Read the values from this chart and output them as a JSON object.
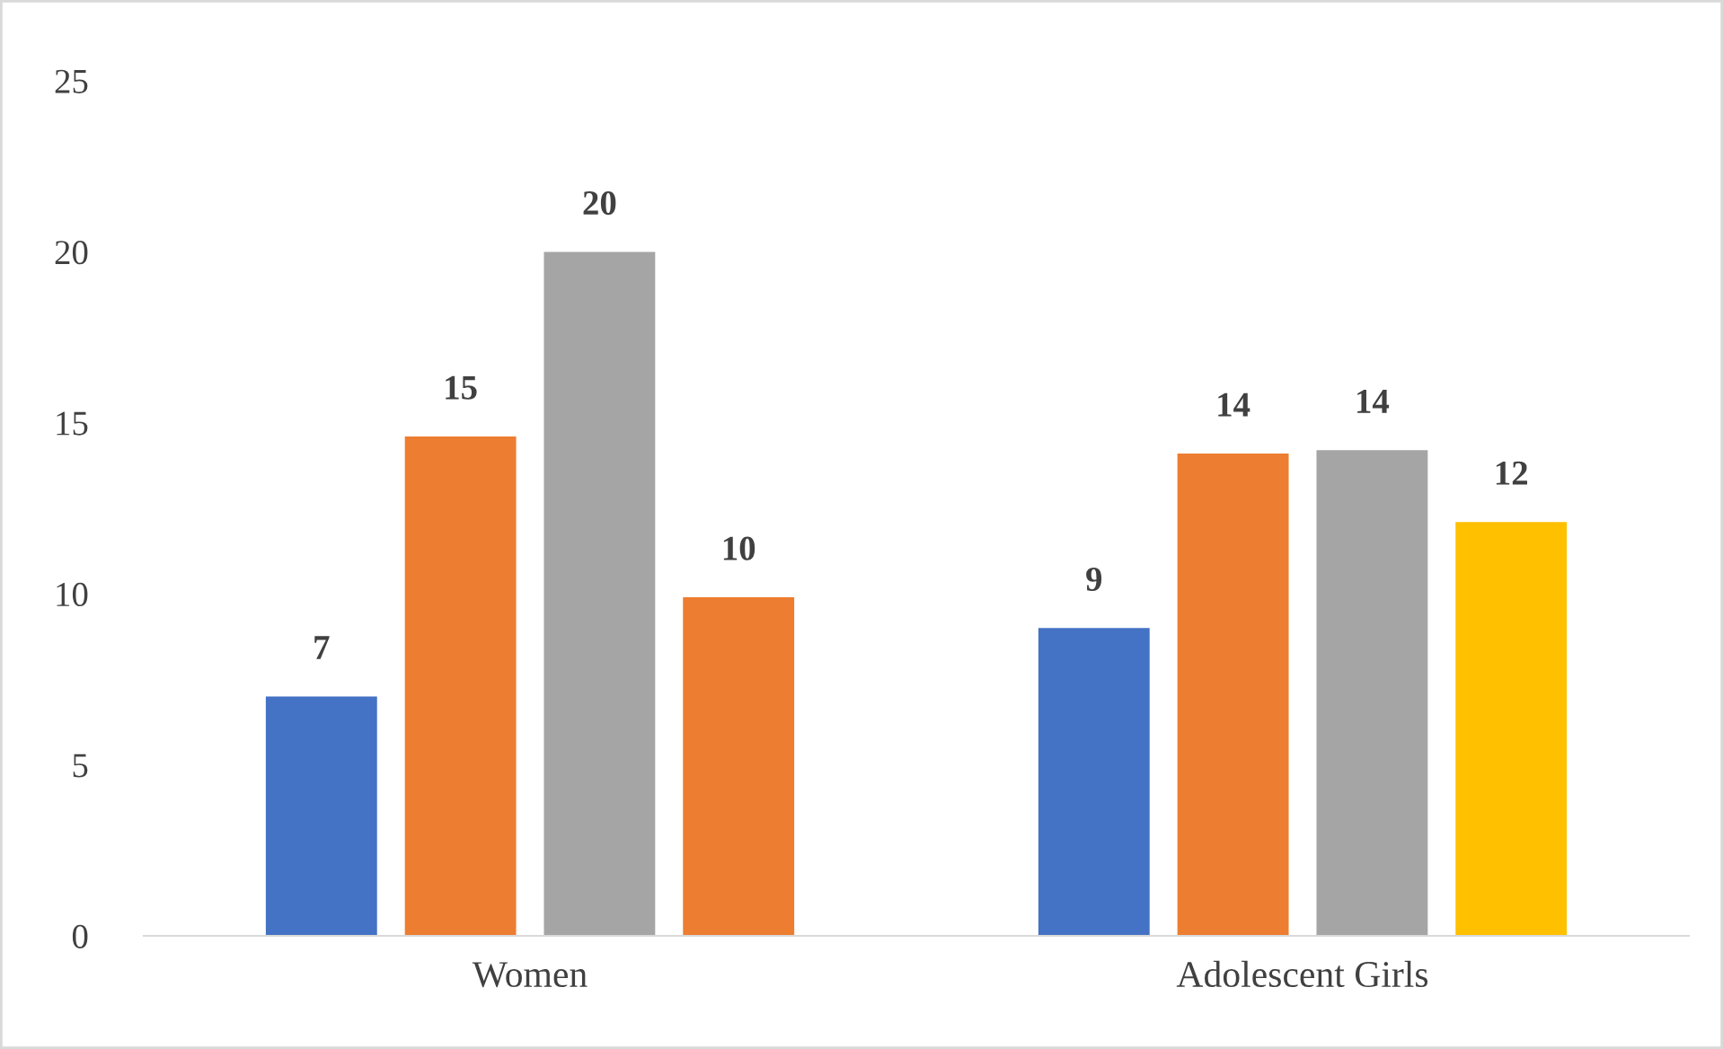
{
  "chart_data": {
    "type": "bar",
    "categories": [
      "Women",
      "Adolescent Girls"
    ],
    "series": [
      {
        "color": "#4472c4",
        "values": [
          7,
          9
        ],
        "value_labels": [
          "7",
          "9"
        ]
      },
      {
        "color": "#ed7d31",
        "values": [
          14.6,
          14.1
        ],
        "value_labels": [
          "15",
          "14"
        ]
      },
      {
        "color": "#a5a5a5",
        "values": [
          20,
          14.2
        ],
        "value_labels": [
          "20",
          "14"
        ]
      },
      {
        "colors": [
          "#ed7d31",
          "#ffc000"
        ],
        "values": [
          9.9,
          12.1
        ],
        "value_labels": [
          "10",
          "12"
        ]
      }
    ],
    "ylim": [
      0,
      25
    ],
    "yticks": [
      0,
      5,
      10,
      15,
      20,
      25
    ],
    "grid": false,
    "legend": false
  }
}
